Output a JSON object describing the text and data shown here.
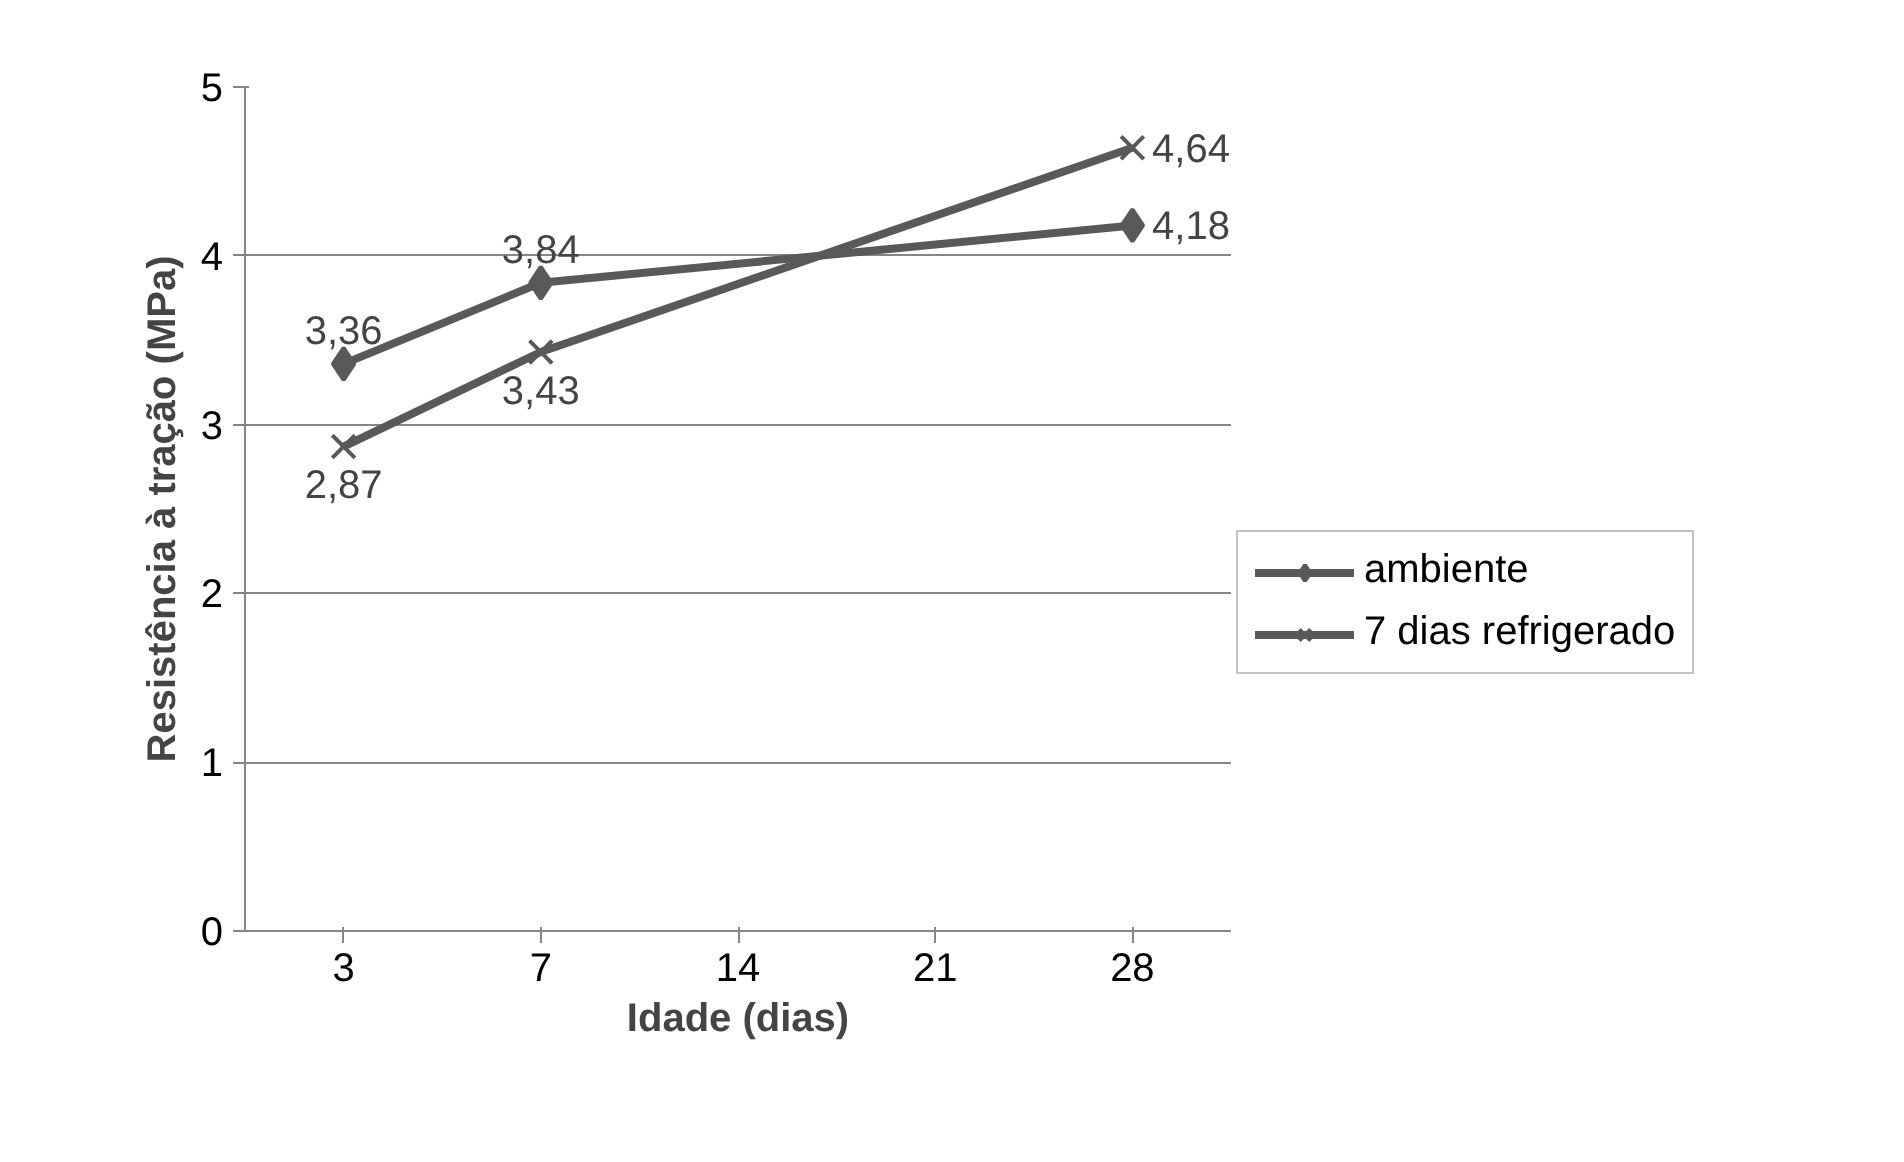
{
  "chart_data": {
    "type": "line",
    "xlabel": "Idade (dias)",
    "ylabel": "Resistência à tração (MPa)",
    "categories": [
      "3",
      "7",
      "14",
      "21",
      "28"
    ],
    "series": [
      {
        "name": "ambiente",
        "color": "#595959",
        "marker": "diamond",
        "values": [
          3.36,
          3.84,
          null,
          null,
          4.18
        ],
        "value_labels": [
          "3,36",
          "3,84",
          null,
          null,
          "4,18"
        ]
      },
      {
        "name": "7 dias refrigerado",
        "color": "#595959",
        "marker": "cross",
        "values": [
          2.87,
          3.43,
          null,
          null,
          4.64
        ],
        "value_labels": [
          "2,87",
          "3,43",
          null,
          null,
          "4,64"
        ]
      }
    ],
    "ylim": [
      0,
      5
    ],
    "yticks": [
      0,
      1,
      2,
      3,
      4,
      5
    ],
    "grid": "y",
    "legend": "right",
    "line_style": "solid"
  }
}
